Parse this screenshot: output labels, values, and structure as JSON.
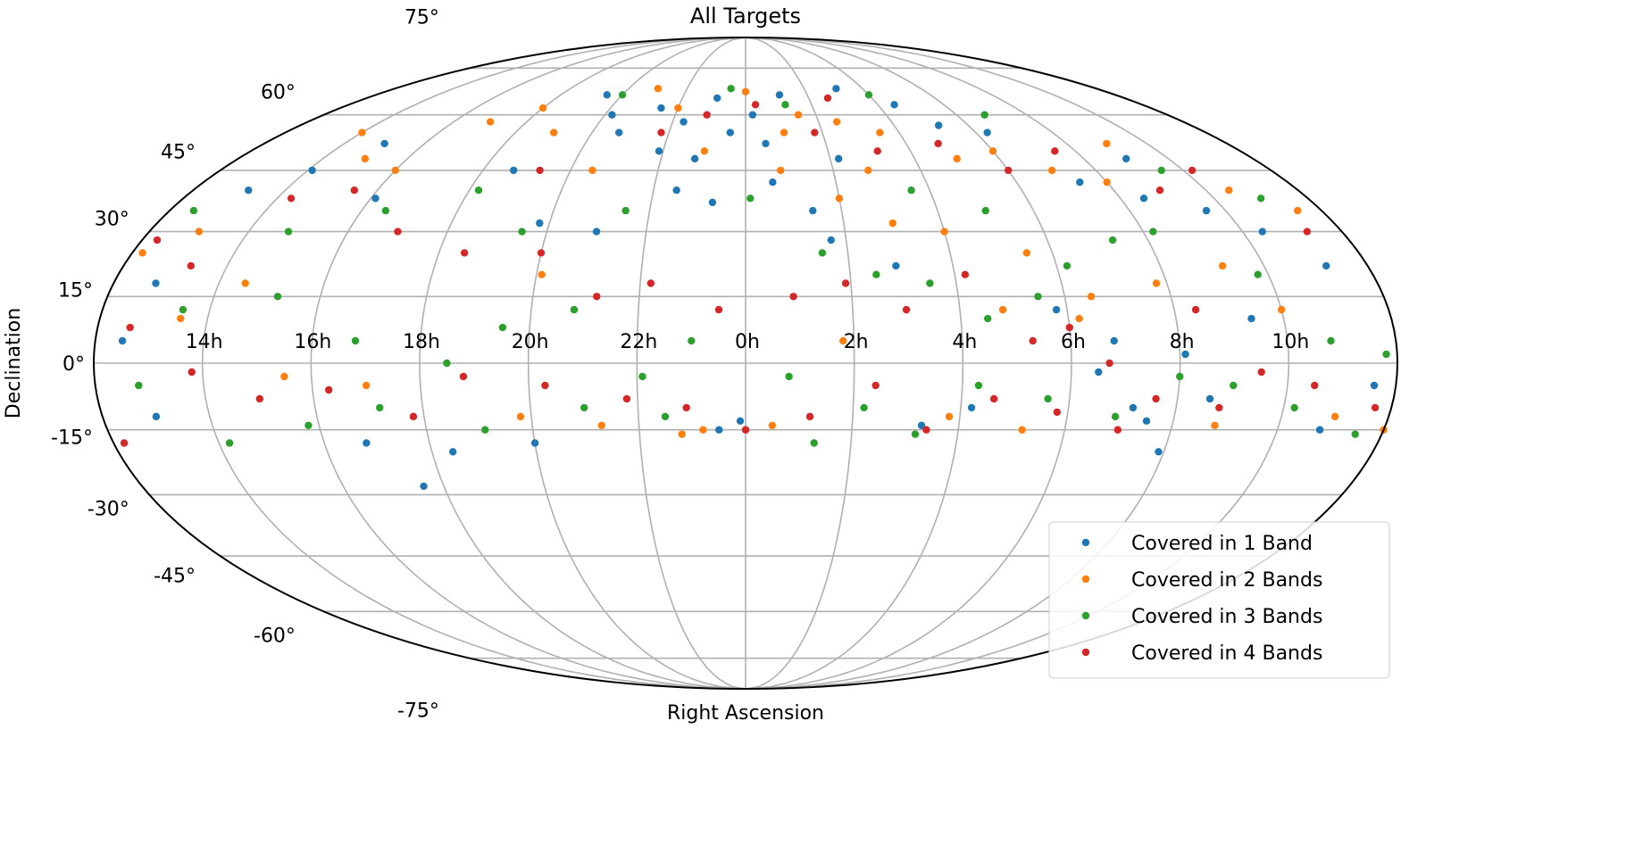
{
  "chart_data": {
    "type": "scatter",
    "projection": "mollweide",
    "title": "All Targets",
    "xlabel": "Right Ascension",
    "ylabel": "Declination",
    "grid": true,
    "legend_placement": "lower-right",
    "xticks": [
      "14h",
      "16h",
      "18h",
      "20h",
      "22h",
      "0h",
      "2h",
      "4h",
      "6h",
      "8h",
      "10h"
    ],
    "xtick_ra_hours": [
      14,
      16,
      18,
      20,
      22,
      0,
      2,
      4,
      6,
      8,
      10
    ],
    "yticks": [
      "75°",
      "60°",
      "45°",
      "30°",
      "15°",
      "0°",
      "-15°",
      "-30°",
      "-45°",
      "-60°",
      "-75°"
    ],
    "ytick_dec": [
      75,
      60,
      45,
      30,
      15,
      0,
      -15,
      -30,
      -45,
      -60,
      -75
    ],
    "point_format": "[ra_hours, dec_degrees] (representative sample)",
    "series": [
      {
        "name": "Covered in 1 Band",
        "color": "#1f77b4",
        "points": [
          [
            21.5,
            62
          ],
          [
            22.3,
            58
          ],
          [
            23.1,
            65
          ],
          [
            23.6,
            55
          ],
          [
            0.2,
            60
          ],
          [
            0.5,
            52
          ],
          [
            1.1,
            66
          ],
          [
            22.8,
            48
          ],
          [
            21.9,
            50
          ],
          [
            20.7,
            55
          ],
          [
            20.2,
            60
          ],
          [
            19.5,
            66
          ],
          [
            22.5,
            40
          ],
          [
            23.3,
            37
          ],
          [
            0.6,
            42
          ],
          [
            1.4,
            35
          ],
          [
            2.2,
            48
          ],
          [
            3.1,
            68
          ],
          [
            4.5,
            63
          ],
          [
            5.2,
            57
          ],
          [
            6.3,
            55
          ],
          [
            7.4,
            42
          ],
          [
            8.5,
            38
          ],
          [
            9.6,
            35
          ],
          [
            10.4,
            30
          ],
          [
            11.2,
            22
          ],
          [
            13.2,
            40
          ],
          [
            14.1,
            45
          ],
          [
            15.0,
            52
          ],
          [
            16.1,
            38
          ],
          [
            12.8,
            18
          ],
          [
            12.5,
            5
          ],
          [
            13.0,
            -12
          ],
          [
            6.5,
            -2
          ],
          [
            6.8,
            5
          ],
          [
            7.2,
            -10
          ],
          [
            7.5,
            -13
          ],
          [
            7.9,
            -20
          ],
          [
            8.1,
            2
          ],
          [
            8.6,
            -8
          ],
          [
            9.4,
            10
          ],
          [
            5.8,
            12
          ],
          [
            4.2,
            -10
          ],
          [
            3.3,
            -14
          ],
          [
            23.9,
            -13
          ],
          [
            23.5,
            -15
          ],
          [
            17.6,
            -28
          ],
          [
            18.4,
            -20
          ],
          [
            16.8,
            -18
          ],
          [
            20.0,
            -18
          ],
          [
            2.9,
            22
          ],
          [
            1.7,
            28
          ],
          [
            11.6,
            -5
          ],
          [
            10.8,
            -15
          ],
          [
            21.0,
            30
          ],
          [
            19.8,
            32
          ],
          [
            9.0,
            48
          ],
          [
            18.7,
            45
          ]
        ]
      },
      {
        "name": "Covered in 2 Bands",
        "color": "#ff7f0e",
        "points": [
          [
            21,
            68
          ],
          [
            22,
            62
          ],
          [
            0,
            67
          ],
          [
            1.5,
            60
          ],
          [
            2.5,
            58
          ],
          [
            3.5,
            55
          ],
          [
            5,
            48
          ],
          [
            6,
            50
          ],
          [
            7,
            45
          ],
          [
            8,
            42
          ],
          [
            9,
            52
          ],
          [
            10.5,
            40
          ],
          [
            11.5,
            35
          ],
          [
            13,
            30
          ],
          [
            14,
            55
          ],
          [
            15,
            48
          ],
          [
            16,
            45
          ],
          [
            17,
            58
          ],
          [
            18,
            62
          ],
          [
            19,
            55
          ],
          [
            20.5,
            45
          ],
          [
            23,
            50
          ],
          [
            0.8,
            45
          ],
          [
            2,
            38
          ],
          [
            3,
            32
          ],
          [
            4,
            30
          ],
          [
            5.5,
            25
          ],
          [
            6.5,
            15
          ],
          [
            6.2,
            10
          ],
          [
            7.8,
            18
          ],
          [
            9.2,
            22
          ],
          [
            10,
            12
          ],
          [
            11,
            -12
          ],
          [
            12,
            -15
          ],
          [
            13.5,
            10
          ],
          [
            15.5,
            -3
          ],
          [
            17,
            -5
          ],
          [
            19.8,
            -12
          ],
          [
            21.3,
            -14
          ],
          [
            22.8,
            -16
          ],
          [
            23.2,
            -15
          ],
          [
            0.5,
            -14
          ],
          [
            1.8,
            5
          ],
          [
            3.8,
            -12
          ],
          [
            4.8,
            12
          ],
          [
            5.2,
            -15
          ],
          [
            8.8,
            -14
          ],
          [
            12.2,
            25
          ],
          [
            14.5,
            18
          ],
          [
            20.1,
            20
          ],
          [
            2.8,
            45
          ],
          [
            1,
            55
          ]
        ]
      },
      {
        "name": "Covered in 3 Bands",
        "color": "#2ca02c",
        "points": [
          [
            20,
            66
          ],
          [
            23.5,
            68
          ],
          [
            1.2,
            63
          ],
          [
            4,
            66
          ],
          [
            6.8,
            60
          ],
          [
            9.5,
            45
          ],
          [
            11,
            38
          ],
          [
            12.5,
            35
          ],
          [
            14.8,
            30
          ],
          [
            16.5,
            35
          ],
          [
            18.2,
            40
          ],
          [
            19.5,
            30
          ],
          [
            21.5,
            35
          ],
          [
            0.1,
            38
          ],
          [
            1.5,
            25
          ],
          [
            2.5,
            20
          ],
          [
            3.5,
            18
          ],
          [
            4.5,
            10
          ],
          [
            5.5,
            15
          ],
          [
            6.2,
            22
          ],
          [
            7.3,
            28
          ],
          [
            8.2,
            30
          ],
          [
            9.8,
            20
          ],
          [
            10.8,
            5
          ],
          [
            11.8,
            2
          ],
          [
            13.5,
            12
          ],
          [
            15.2,
            15
          ],
          [
            16.8,
            5
          ],
          [
            18.5,
            0
          ],
          [
            19.5,
            8
          ],
          [
            20.8,
            12
          ],
          [
            22.1,
            -3
          ],
          [
            23,
            5
          ],
          [
            0.8,
            -3
          ],
          [
            2.2,
            -10
          ],
          [
            3.2,
            -16
          ],
          [
            4.3,
            -5
          ],
          [
            5.6,
            -8
          ],
          [
            6.9,
            -12
          ],
          [
            8,
            -3
          ],
          [
            9,
            -5
          ],
          [
            10.2,
            -10
          ],
          [
            11.5,
            -16
          ],
          [
            12.8,
            -5
          ],
          [
            14.2,
            -18
          ],
          [
            15.8,
            -14
          ],
          [
            17.2,
            -10
          ],
          [
            19.1,
            -15
          ],
          [
            21,
            -10
          ],
          [
            22.5,
            -12
          ],
          [
            1.3,
            -18
          ],
          [
            3.6,
            40
          ],
          [
            5,
            35
          ]
        ]
      },
      {
        "name": "Covered in 4 Bands",
        "color": "#d62728",
        "points": [
          [
            21.8,
            55
          ],
          [
            22.9,
            60
          ],
          [
            0.3,
            63
          ],
          [
            1.8,
            55
          ],
          [
            3.2,
            50
          ],
          [
            4.8,
            52
          ],
          [
            6,
            45
          ],
          [
            7.5,
            50
          ],
          [
            9,
            40
          ],
          [
            10.2,
            45
          ],
          [
            11.3,
            30
          ],
          [
            12.3,
            28
          ],
          [
            13.3,
            22
          ],
          [
            14.3,
            38
          ],
          [
            15.5,
            40
          ],
          [
            17,
            30
          ],
          [
            18.5,
            25
          ],
          [
            20,
            25
          ],
          [
            21.2,
            15
          ],
          [
            22.2,
            18
          ],
          [
            23.5,
            12
          ],
          [
            0.9,
            15
          ],
          [
            1.9,
            18
          ],
          [
            3,
            12
          ],
          [
            4.2,
            20
          ],
          [
            5.3,
            5
          ],
          [
            6,
            8
          ],
          [
            6.7,
            0
          ],
          [
            7.6,
            -8
          ],
          [
            8.4,
            12
          ],
          [
            9.5,
            -2
          ],
          [
            10.5,
            -5
          ],
          [
            11.7,
            -10
          ],
          [
            12.6,
            8
          ],
          [
            13.8,
            -2
          ],
          [
            15,
            -8
          ],
          [
            16.3,
            -6
          ],
          [
            17.8,
            -12
          ],
          [
            18.8,
            -3
          ],
          [
            20.3,
            -5
          ],
          [
            21.8,
            -8
          ],
          [
            22.9,
            -10
          ],
          [
            0,
            -15
          ],
          [
            1.2,
            -12
          ],
          [
            2.4,
            -5
          ],
          [
            3.4,
            -15
          ],
          [
            4.6,
            -8
          ],
          [
            5.8,
            -11
          ],
          [
            7,
            -15
          ],
          [
            8.8,
            -10
          ],
          [
            12.2,
            -18
          ],
          [
            19.3,
            45
          ],
          [
            2.6,
            65
          ]
        ]
      }
    ]
  }
}
